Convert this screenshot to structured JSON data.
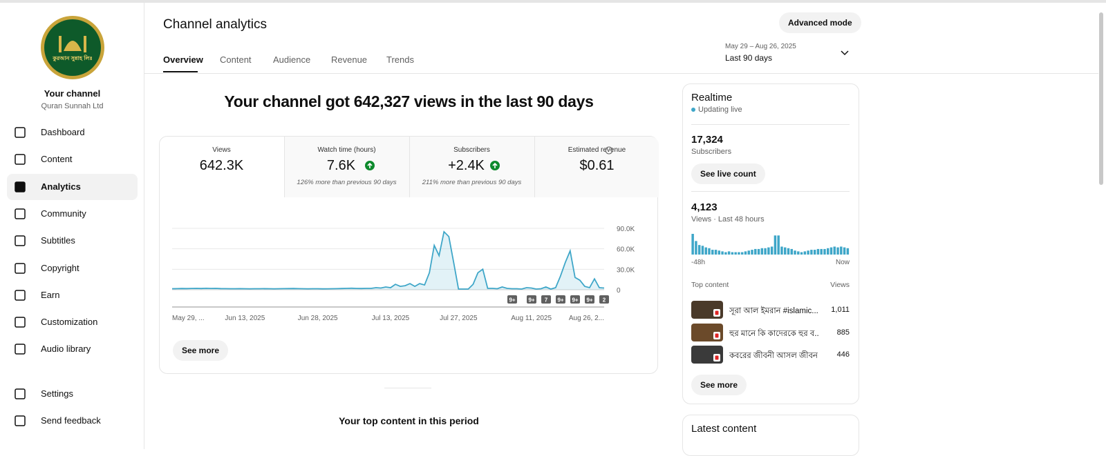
{
  "sidebar": {
    "logo_text": "কুরআন সুন্নাহ লিঃ",
    "channel_title": "Your channel",
    "channel_name": "Quran Sunnah Ltd",
    "nav": [
      {
        "label": "Dashboard"
      },
      {
        "label": "Content"
      },
      {
        "label": "Analytics",
        "active": true
      },
      {
        "label": "Community"
      },
      {
        "label": "Subtitles"
      },
      {
        "label": "Copyright"
      },
      {
        "label": "Earn"
      },
      {
        "label": "Customization"
      },
      {
        "label": "Audio library"
      }
    ],
    "footer_nav": [
      {
        "label": "Settings"
      },
      {
        "label": "Send feedback"
      }
    ]
  },
  "header": {
    "title": "Channel analytics",
    "button": "Advanced mode",
    "tabs": [
      {
        "label": "Overview",
        "active": true
      },
      {
        "label": "Content"
      },
      {
        "label": "Audience"
      },
      {
        "label": "Revenue"
      },
      {
        "label": "Trends"
      }
    ],
    "date_range": "May 29 – Aug 26, 2025",
    "period": "Last 90 days"
  },
  "headline": "Your channel got 642,327 views in the last 90 days",
  "metrics": [
    {
      "label": "Views",
      "value": "642.3K"
    },
    {
      "label": "Watch time (hours)",
      "value": "7.6K",
      "trend": "up",
      "note": "126% more than previous 90 days"
    },
    {
      "label": "Subscribers",
      "value": "+2.4K",
      "trend": "up",
      "note": "211% more than previous 90 days"
    },
    {
      "label": "Estimated revenue",
      "value": "$0.61"
    }
  ],
  "chart_data": [
    {
      "type": "line",
      "color": "#3ea6c8",
      "categories": [
        "May 29, ...",
        null,
        null,
        null,
        null,
        null,
        null,
        null,
        null,
        null,
        null,
        null,
        null,
        null,
        null,
        "Jun 13, 2025",
        null,
        null,
        null,
        null,
        null,
        null,
        null,
        null,
        null,
        null,
        null,
        null,
        null,
        null,
        "Jun 28, 2025",
        null,
        null,
        null,
        null,
        null,
        null,
        null,
        null,
        null,
        null,
        null,
        null,
        null,
        null,
        "Jul 13, 2025",
        null,
        null,
        null,
        null,
        null,
        null,
        null,
        null,
        null,
        null,
        null,
        null,
        null,
        "Jul 27, 2025",
        null,
        null,
        null,
        null,
        null,
        null,
        null,
        null,
        null,
        null,
        null,
        null,
        null,
        null,
        "Aug 11, 2025",
        null,
        null,
        null,
        null,
        null,
        null,
        null,
        null,
        null,
        null,
        null,
        null,
        null,
        null,
        "Aug 26, 2..."
      ],
      "values": [
        1500,
        1600,
        1800,
        1700,
        1900,
        2000,
        1800,
        2100,
        1900,
        2000,
        1700,
        1600,
        1500,
        1500,
        1600,
        1500,
        1400,
        1500,
        1500,
        1600,
        1500,
        1400,
        1500,
        1600,
        1700,
        1800,
        1600,
        1500,
        1400,
        1500,
        1500,
        1300,
        1400,
        1500,
        1600,
        1800,
        2000,
        2200,
        1900,
        1800,
        2000,
        2000,
        3000,
        2500,
        4000,
        3000,
        8000,
        5000,
        6000,
        9000,
        5000,
        9000,
        7000,
        25000,
        65000,
        50000,
        85000,
        78000,
        40000,
        1000,
        1000,
        1000,
        8000,
        25000,
        30000,
        2000,
        2000,
        1500,
        4000,
        2000,
        1500,
        1500,
        1000,
        3000,
        2500,
        1000,
        1500,
        4000,
        1000,
        3000,
        20000,
        40000,
        57000,
        18000,
        14000,
        5000,
        3000,
        16000,
        3000,
        2500
      ],
      "ylim": [
        0,
        90000
      ],
      "yticks": [
        0,
        {
          "value": 30000,
          "label": "30.0K"
        },
        {
          "value": 60000,
          "label": "60.0K"
        },
        {
          "value": 90000,
          "label": "90.0K"
        }
      ],
      "grid": true,
      "annotations": [
        "9+",
        "9+",
        "7",
        "9+",
        "9+",
        "9+",
        "2"
      ]
    },
    {
      "type": "bar",
      "color": "#3ea6c8",
      "categories": [
        "-48h",
        null,
        null,
        null,
        null,
        null,
        null,
        null,
        null,
        null,
        null,
        null,
        null,
        null,
        null,
        null,
        null,
        null,
        null,
        null,
        null,
        null,
        null,
        null,
        null,
        null,
        null,
        null,
        null,
        null,
        null,
        null,
        null,
        null,
        null,
        null,
        null,
        null,
        null,
        null,
        null,
        null,
        null,
        null,
        null,
        null,
        null,
        "Now"
      ],
      "values": [
        260,
        170,
        120,
        110,
        90,
        80,
        60,
        60,
        50,
        40,
        30,
        40,
        30,
        30,
        30,
        30,
        40,
        50,
        60,
        70,
        70,
        80,
        80,
        90,
        100,
        240,
        240,
        100,
        90,
        80,
        70,
        50,
        40,
        30,
        40,
        50,
        60,
        60,
        70,
        70,
        70,
        80,
        90,
        100,
        90,
        100,
        90,
        80
      ]
    }
  ],
  "chart_button": "See more",
  "realtime": {
    "title": "Realtime",
    "status": "Updating live",
    "subscribers": "17,324",
    "subscribers_label": "Subscribers",
    "live_button": "See live count",
    "views": "4,123",
    "views_label": "Views · Last 48 hours",
    "top_content_title": "Top content",
    "top_content_header": "Views",
    "top_content": [
      {
        "title": "সূরা আল ইমরান #islamic...",
        "views": "1,011"
      },
      {
        "title": "হুর মানে কি কাদেরকে হুর ব...",
        "views": "885"
      },
      {
        "title": "কবরের জীবনী আসল জীবন ...",
        "views": "446"
      }
    ],
    "more_button": "See more"
  },
  "top_content_heading": "Your top content in this period",
  "latest_content": "Latest content"
}
